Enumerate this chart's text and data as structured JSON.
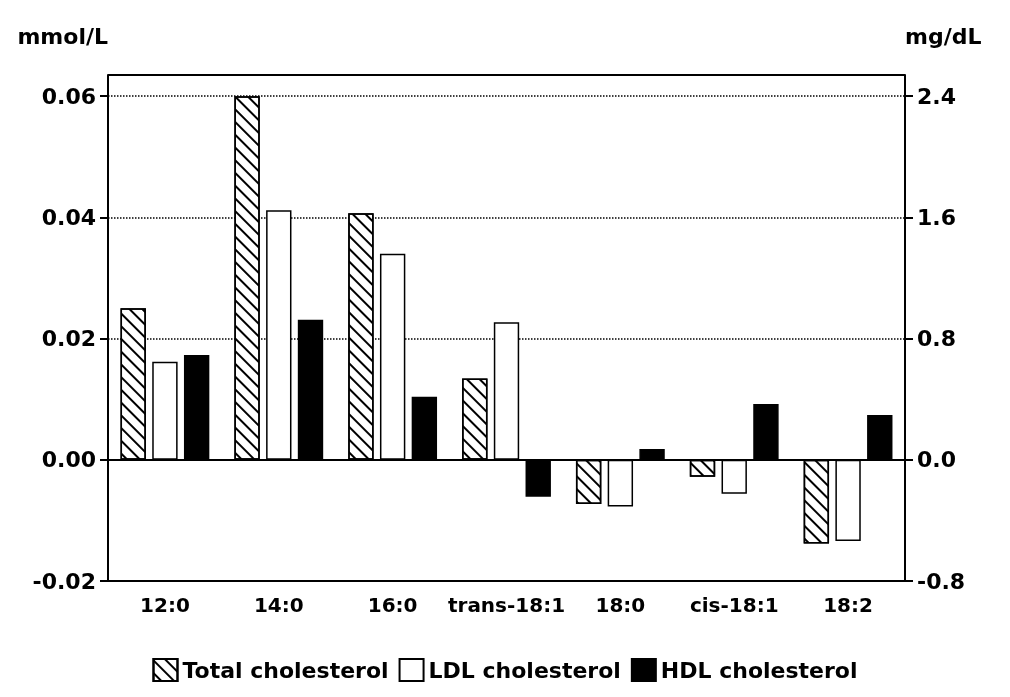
{
  "chart_data": {
    "type": "bar",
    "ylabel": "mmol/L",
    "y2label": "mg/dL",
    "categories": [
      "12:0",
      "14:0",
      "16:0",
      "trans-18:1",
      "18:0",
      "cis-18:1",
      "18:2"
    ],
    "series": [
      {
        "name": "Total cholesterol",
        "color": "#ffffff",
        "values": [
          0.025,
          0.06,
          0.0407,
          0.0134,
          -0.0073,
          -0.0028,
          -0.0138
        ]
      },
      {
        "name": "LDL cholesterol",
        "color": "#ffffff",
        "values": [
          0.0162,
          0.0412,
          0.034,
          0.0227,
          -0.0077,
          -0.0056,
          -0.0134
        ]
      },
      {
        "name": "HDL cholesterol",
        "color": "#000000",
        "values": [
          0.0173,
          0.0231,
          0.0104,
          -0.0061,
          0.0018,
          0.0092,
          0.0074
        ]
      }
    ],
    "ylim": [
      -0.02,
      0.0635
    ],
    "yticks": [
      -0.02,
      {
        "value": 0,
        "label": "0.00"
      },
      0.02,
      0.04,
      0.06
    ],
    "y2lim": [
      -0.8,
      2.54
    ],
    "y2ticks": [
      -0.8,
      {
        "value": 0,
        "label": "0.0"
      },
      0.8,
      1.6,
      2.4
    ],
    "grid": "y",
    "legend": "bottom"
  }
}
